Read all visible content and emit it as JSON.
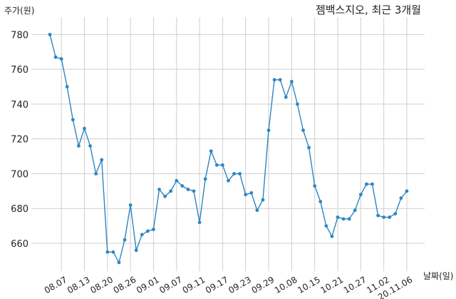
{
  "chart_data": {
    "type": "line",
    "title": "젬백스지오, 최근 3개월",
    "xlabel": "날짜(일)",
    "ylabel": "주가(원)",
    "ylim": [
      644,
      790
    ],
    "yticks": [
      660,
      680,
      700,
      720,
      740,
      760,
      780
    ],
    "grid": true,
    "x_tick_labels": [
      "08.07",
      "08.13",
      "08.20",
      "08.26",
      "09.01",
      "09.07",
      "09.11",
      "09.17",
      "09.23",
      "09.29",
      "10.08",
      "10.15",
      "10.21",
      "10.27",
      "11.02",
      "20.11.06"
    ],
    "x_tick_indices": [
      2,
      6,
      10,
      14,
      18,
      22,
      26,
      30,
      34,
      38,
      42,
      46,
      50,
      54,
      58,
      62
    ],
    "series": [
      {
        "name": "",
        "color": "#2e86c1",
        "values": [
          780,
          767,
          766,
          750,
          731,
          716,
          726,
          716,
          700,
          708,
          655,
          655,
          649,
          662,
          682,
          656,
          665,
          667,
          668,
          691,
          687,
          690,
          696,
          693,
          691,
          690,
          672,
          697,
          713,
          705,
          705,
          696,
          700,
          700,
          688,
          689,
          679,
          685,
          725,
          754,
          754,
          744,
          753,
          740,
          725,
          715,
          693,
          684,
          670,
          664,
          675,
          674,
          674,
          679,
          688,
          694,
          694,
          676,
          675,
          675,
          677,
          686,
          690
        ]
      }
    ]
  }
}
